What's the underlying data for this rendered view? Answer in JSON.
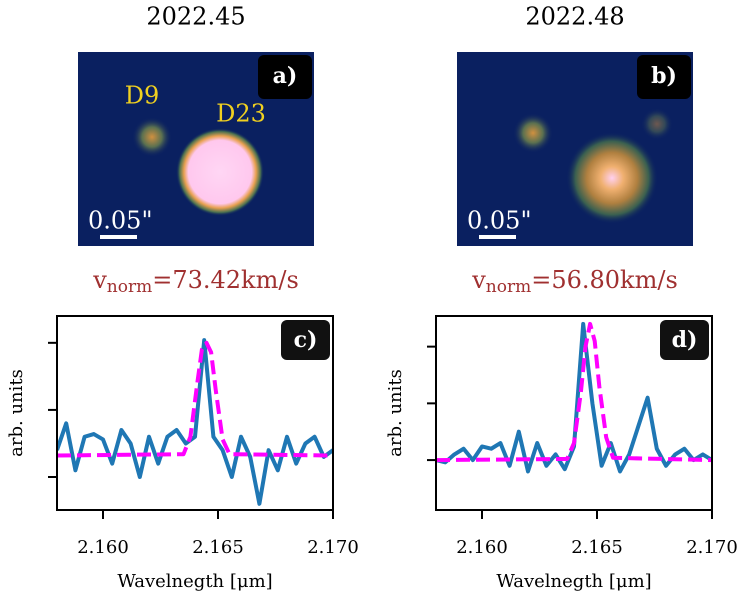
{
  "images": [
    {
      "title": "2022.45",
      "panel_label": "a)",
      "sources": [
        "D9",
        "D23"
      ],
      "scale_label": "0.05\"",
      "velocity": {
        "symbol": "v",
        "subscript": "norm",
        "value_text": "=73.42km/s"
      }
    },
    {
      "title": "2022.48",
      "panel_label": "b)",
      "scale_label": "0.05\"",
      "velocity": {
        "symbol": "v",
        "subscript": "norm",
        "value_text": "=56.80km/s"
      }
    }
  ],
  "chart_data": [
    {
      "type": "line",
      "panel_label": "c)",
      "xlabel": "Wavelnegth [μm]",
      "ylabel": "arb. units",
      "xlim": [
        2.158,
        2.17
      ],
      "xticks": [
        {
          "value": 2.16,
          "label": "2.160"
        },
        {
          "value": 2.165,
          "label": "2.165"
        },
        {
          "value": 2.17,
          "label": "2.170"
        }
      ],
      "ylim": [
        -0.246,
        1.2
      ],
      "yticks": [
        0,
        0.5,
        1
      ],
      "series": [
        {
          "color": "#1f77b4",
          "style": "solid",
          "x": [
            2.158,
            2.1584,
            2.1588,
            2.1592,
            2.1596,
            2.16,
            2.1604,
            2.1608,
            2.1612,
            2.1616,
            2.162,
            2.1624,
            2.1628,
            2.1632,
            2.1636,
            2.164,
            2.1644,
            2.1648,
            2.1652,
            2.1656,
            2.166,
            2.1664,
            2.1668,
            2.1672,
            2.1676,
            2.168,
            2.1684,
            2.1688,
            2.1692,
            2.1696,
            2.17
          ],
          "values": [
            0.2,
            0.4,
            0.05,
            0.3,
            0.32,
            0.28,
            0.1,
            0.35,
            0.25,
            0.0,
            0.3,
            0.1,
            0.3,
            0.35,
            0.25,
            0.3,
            1.02,
            0.3,
            0.2,
            0.0,
            0.3,
            0.15,
            -0.2,
            0.2,
            0.05,
            0.3,
            0.1,
            0.25,
            0.3,
            0.15,
            0.2
          ]
        },
        {
          "color": "#ff00ff",
          "style": "dashed",
          "x": [
            2.158,
            2.1635,
            2.1638,
            2.1641,
            2.1643,
            2.1645,
            2.1647,
            2.1649,
            2.1652,
            2.1655,
            2.17
          ],
          "values": [
            0.16,
            0.17,
            0.3,
            0.7,
            0.95,
            1.0,
            0.93,
            0.65,
            0.28,
            0.17,
            0.16
          ]
        }
      ]
    },
    {
      "type": "line",
      "panel_label": "d)",
      "xlabel": "Wavelnegth [μm]",
      "ylabel": "arb. units",
      "xlim": [
        2.158,
        2.17
      ],
      "xticks": [
        {
          "value": 2.16,
          "label": "2.160"
        },
        {
          "value": 2.165,
          "label": "2.165"
        },
        {
          "value": 2.17,
          "label": "2.170"
        }
      ],
      "ylim": [
        -0.44,
        1.27
      ],
      "yticks": [
        0,
        0.5,
        1
      ],
      "series": [
        {
          "color": "#1f77b4",
          "style": "solid",
          "x": [
            2.158,
            2.1584,
            2.1588,
            2.1592,
            2.1596,
            2.16,
            2.1604,
            2.1608,
            2.1612,
            2.1616,
            2.162,
            2.1624,
            2.1628,
            2.1632,
            2.1636,
            2.164,
            2.1644,
            2.1648,
            2.1652,
            2.1656,
            2.166,
            2.1664,
            2.1668,
            2.1672,
            2.1676,
            2.168,
            2.1684,
            2.1688,
            2.1692,
            2.1696,
            2.17
          ],
          "values": [
            0.0,
            -0.02,
            0.05,
            0.1,
            0.0,
            0.12,
            0.1,
            0.15,
            -0.05,
            0.25,
            -0.1,
            0.15,
            -0.05,
            0.05,
            -0.08,
            0.12,
            1.2,
            0.5,
            -0.05,
            0.15,
            -0.1,
            0.05,
            0.3,
            0.55,
            0.1,
            -0.05,
            0.05,
            0.1,
            0.0,
            0.05,
            0.0
          ]
        },
        {
          "color": "#ff00ff",
          "style": "dashed",
          "x": [
            2.158,
            2.1637,
            2.164,
            2.1643,
            2.1645,
            2.1647,
            2.1649,
            2.1651,
            2.1654,
            2.1657,
            2.17
          ],
          "values": [
            0.0,
            0.01,
            0.15,
            0.6,
            1.0,
            1.2,
            1.05,
            0.65,
            0.2,
            0.02,
            0.0
          ]
        }
      ]
    }
  ]
}
